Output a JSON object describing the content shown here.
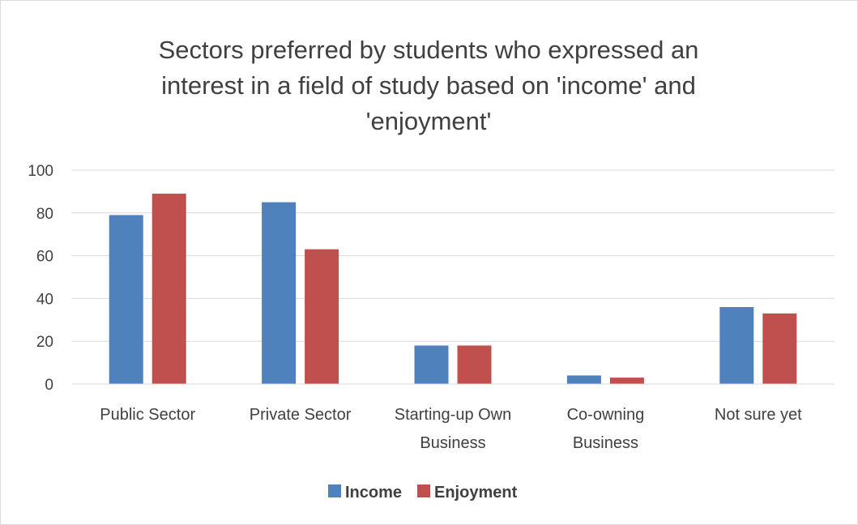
{
  "chart_data": {
    "type": "bar",
    "title_lines": [
      "Sectors preferred by students who expressed an",
      "interest in a field of study based on 'income' and",
      "'enjoyment'"
    ],
    "categories": [
      [
        "Public Sector"
      ],
      [
        "Private Sector"
      ],
      [
        "Starting-up Own",
        "Business"
      ],
      [
        "Co-owning",
        "Business"
      ],
      [
        "Not sure yet"
      ]
    ],
    "series": [
      {
        "name": "Income",
        "color": "#4f81bd",
        "values": [
          79,
          85,
          18,
          4,
          36
        ]
      },
      {
        "name": "Enjoyment",
        "color": "#c0504d",
        "values": [
          89,
          63,
          18,
          3,
          33
        ]
      }
    ],
    "ylim": [
      0,
      100
    ],
    "yticks": [
      "0",
      "20",
      "40",
      "60",
      "80",
      "100"
    ],
    "grid": true,
    "legend_position": "bottom"
  }
}
